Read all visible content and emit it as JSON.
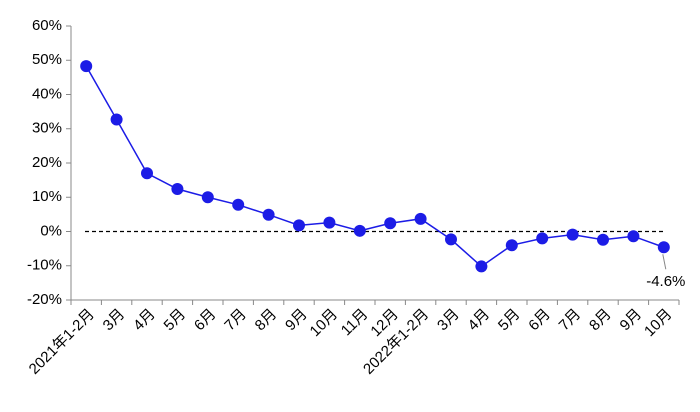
{
  "chart_data": {
    "type": "line",
    "categories": [
      "2021年1-2月",
      "3月",
      "4月",
      "5月",
      "6月",
      "7月",
      "8月",
      "9月",
      "10月",
      "11月",
      "12月",
      "2022年1-2月",
      "3月",
      "4月",
      "5月",
      "6月",
      "7月",
      "8月",
      "9月",
      "10月"
    ],
    "values": [
      48.3,
      32.7,
      17.0,
      12.4,
      10.0,
      7.8,
      4.9,
      1.8,
      2.6,
      0.2,
      2.4,
      3.7,
      -2.3,
      -10.2,
      -4.0,
      -2.0,
      -0.9,
      -2.4,
      -1.4,
      -4.6
    ],
    "value_labels": [
      null,
      null,
      null,
      null,
      null,
      null,
      null,
      null,
      null,
      null,
      null,
      null,
      null,
      null,
      null,
      null,
      null,
      null,
      null,
      "-4.6%"
    ],
    "color": "#1c1ce6",
    "ylim": [
      -20,
      60
    ],
    "yticks": [
      {
        "value": -20,
        "label": "-20%"
      },
      {
        "value": -10,
        "label": "-10%"
      },
      {
        "value": 0,
        "label": "0%"
      },
      {
        "value": 10,
        "label": "10%"
      },
      {
        "value": 20,
        "label": "20%"
      },
      {
        "value": 30,
        "label": "30%"
      },
      {
        "value": 40,
        "label": "40%"
      },
      {
        "value": 50,
        "label": "50%"
      },
      {
        "value": 60,
        "label": "60%"
      }
    ],
    "grid": false,
    "zero_line": true
  }
}
